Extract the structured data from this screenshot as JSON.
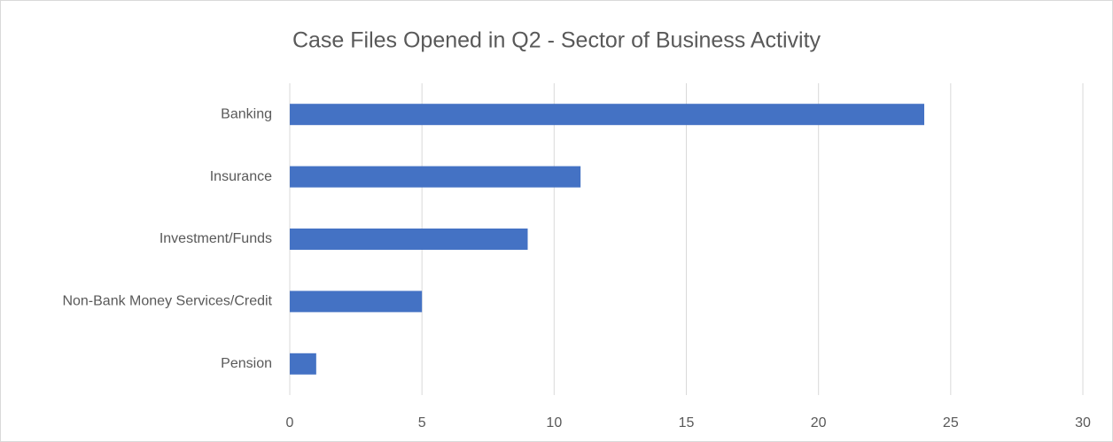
{
  "chart_data": {
    "type": "barh",
    "title": "Case Files Opened in Q2 - Sector of Business Activity",
    "categories": [
      "Banking",
      "Insurance",
      "Investment/Funds",
      "Non-Bank Money Services/Credit",
      "Pension"
    ],
    "values": [
      24,
      11,
      9,
      5,
      1
    ],
    "color": "#4472c4",
    "xlim": [
      0,
      30
    ],
    "xticks": [
      0,
      5,
      10,
      15,
      20,
      25,
      30
    ],
    "grid": true
  }
}
